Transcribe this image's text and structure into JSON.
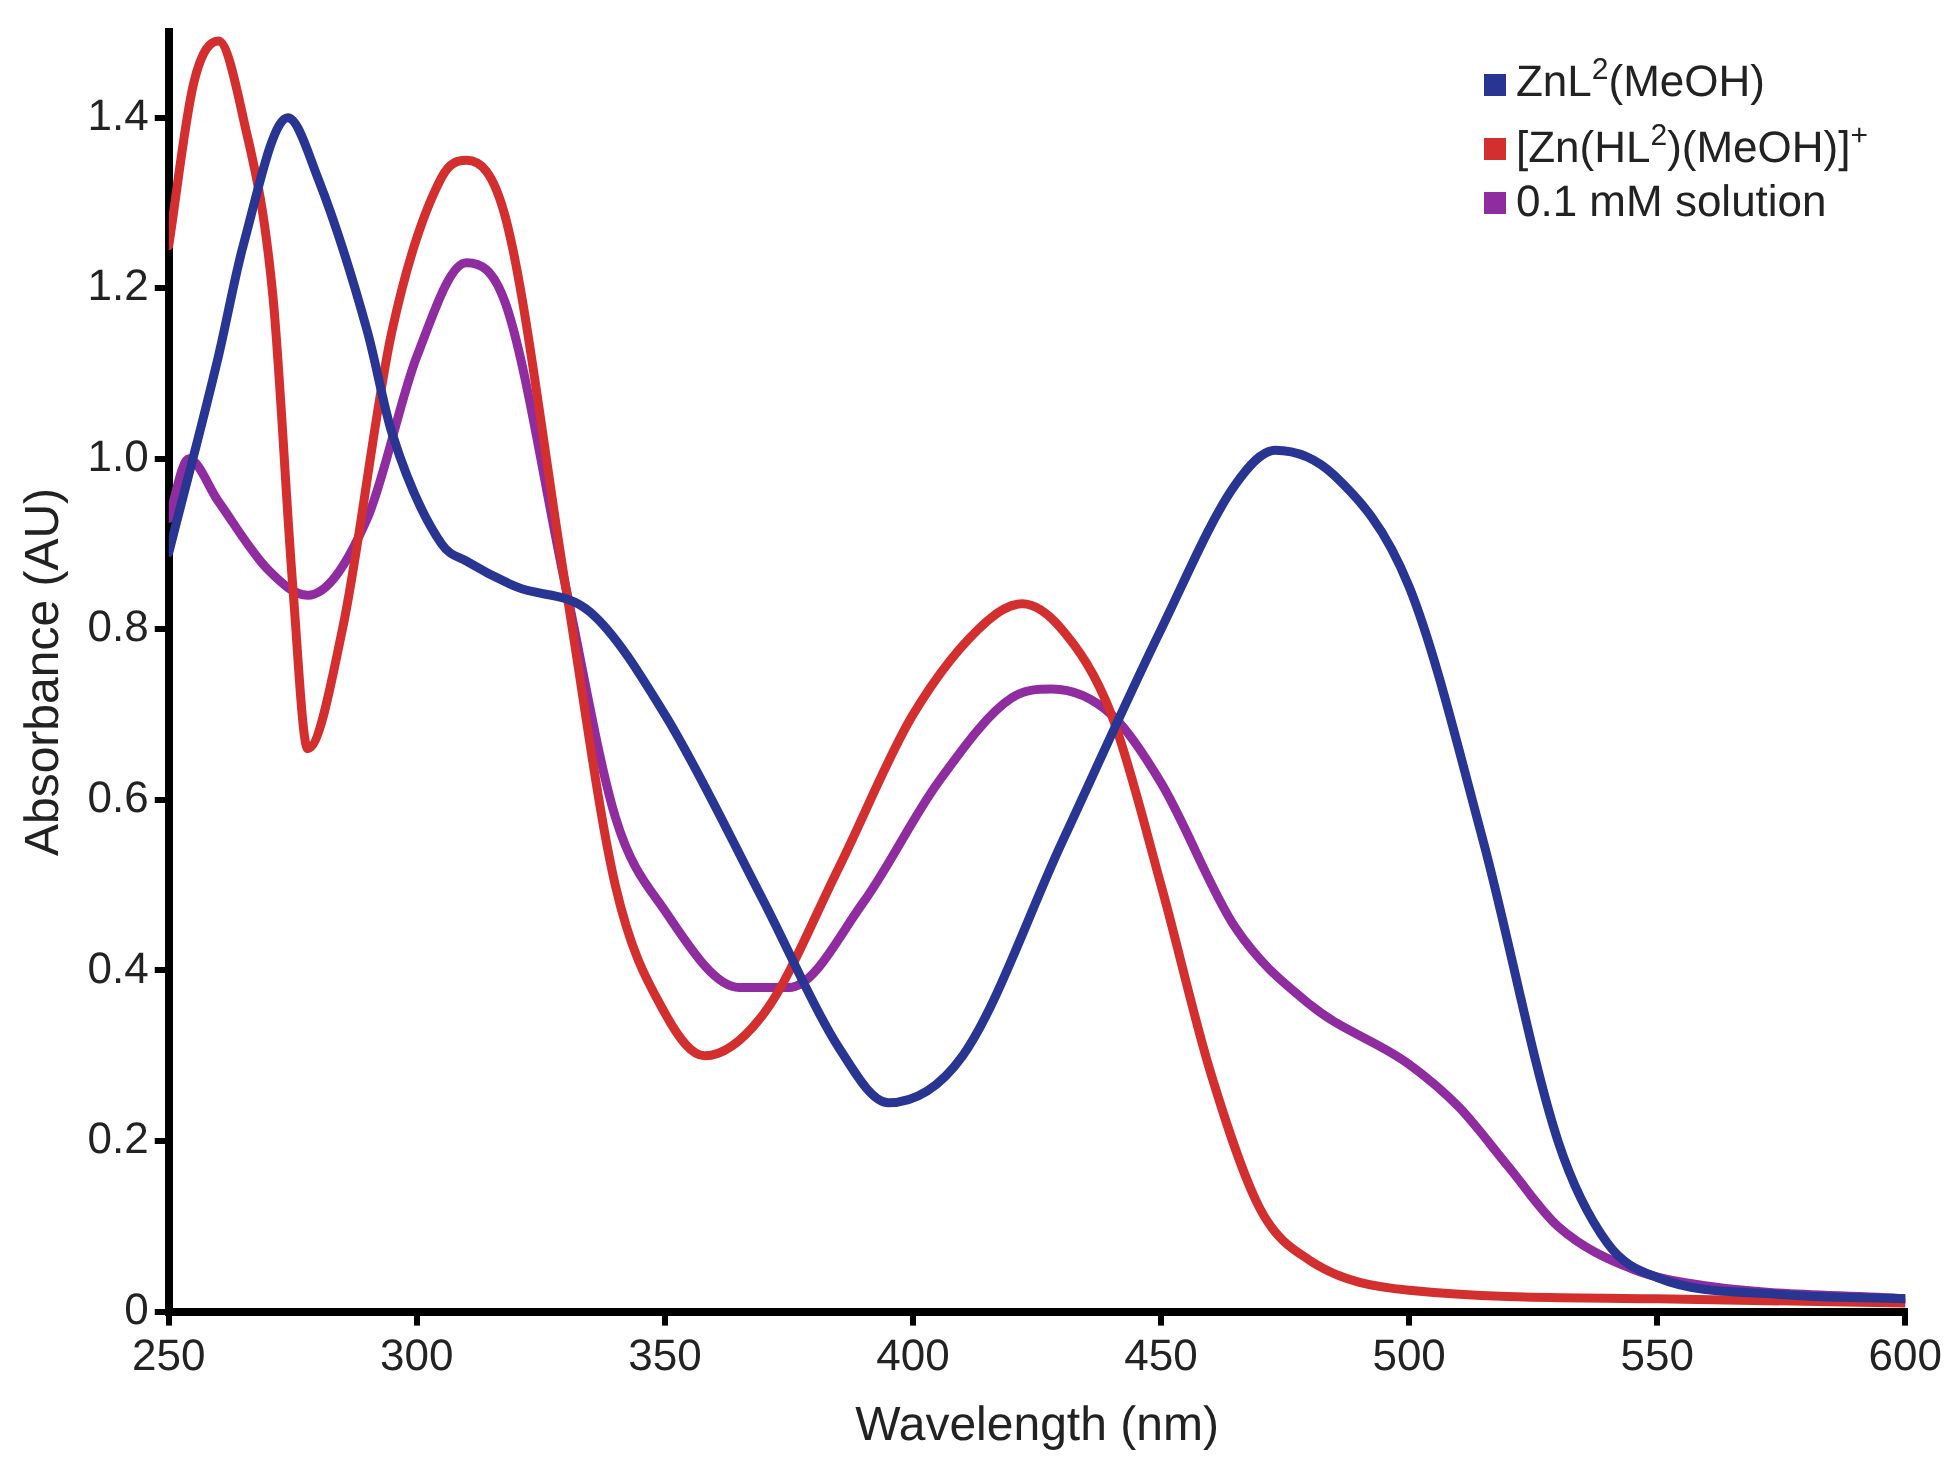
{
  "chart_data": {
    "type": "line",
    "xlabel": "Wavelength (nm)",
    "ylabel": "Absorbance (AU)",
    "xlim": [
      250,
      600
    ],
    "ylim": [
      0,
      1.5
    ],
    "xticks": [
      250,
      300,
      350,
      400,
      450,
      500,
      550,
      600
    ],
    "yticks": [
      0,
      0.2,
      0.4,
      0.6,
      0.8,
      {
        "value": 1,
        "label": "1.0"
      },
      1.2,
      1.4
    ],
    "grid": false,
    "legend": "top right",
    "marker": "none",
    "line_style": "solid",
    "series": [
      {
        "name": "ZnL$^{2}$(MeOH)",
        "color": "#283593",
        "x": [
          250,
          260,
          265,
          274,
          280,
          290,
          295,
          305,
          310,
          320,
          335,
          350,
          370,
          385,
          395,
          410,
          430,
          450,
          465,
          473,
          485,
          500,
          515,
          530,
          540,
          550,
          575,
          600
        ],
        "values": [
          0.89,
          1.12,
          1.25,
          1.4,
          1.33,
          1.15,
          1.03,
          0.9,
          0.88,
          0.85,
          0.82,
          0.7,
          0.48,
          0.31,
          0.245,
          0.3,
          0.55,
          0.8,
          0.97,
          1.01,
          0.98,
          0.85,
          0.55,
          0.2,
          0.08,
          0.04,
          0.02,
          0.015
        ]
      },
      {
        "name": "[Zn(HL$^{2}$)(MeOH)]$^{+}$",
        "color": "#d32f2f",
        "x": [
          250,
          255,
          260,
          265,
          271,
          275,
          278,
          285,
          295,
          305,
          310,
          318,
          330,
          340,
          350,
          358,
          370,
          385,
          400,
          415,
          422,
          430,
          440,
          450,
          460,
          470,
          480,
          500,
          550,
          600
        ],
        "values": [
          1.25,
          1.44,
          1.49,
          1.4,
          1.19,
          0.85,
          0.66,
          0.8,
          1.15,
          1.33,
          1.35,
          1.28,
          0.85,
          0.5,
          0.35,
          0.3,
          0.35,
          0.52,
          0.7,
          0.81,
          0.83,
          0.8,
          0.7,
          0.5,
          0.28,
          0.12,
          0.06,
          0.025,
          0.015,
          0.01
        ]
      },
      {
        "name": "0.1 mM solution",
        "color": "#8e2ca0",
        "x": [
          250,
          254,
          260,
          270,
          278,
          290,
          300,
          310,
          318,
          330,
          340,
          350,
          365,
          375,
          390,
          405,
          420,
          428,
          440,
          450,
          465,
          480,
          500,
          510,
          520,
          530,
          545,
          560,
          600
        ],
        "values": [
          0.93,
          1.0,
          0.95,
          0.87,
          0.84,
          0.93,
          1.12,
          1.23,
          1.18,
          0.85,
          0.58,
          0.47,
          0.38,
          0.38,
          0.48,
          0.62,
          0.72,
          0.73,
          0.7,
          0.62,
          0.45,
          0.36,
          0.29,
          0.24,
          0.17,
          0.1,
          0.05,
          0.03,
          0.015
        ]
      }
    ]
  }
}
